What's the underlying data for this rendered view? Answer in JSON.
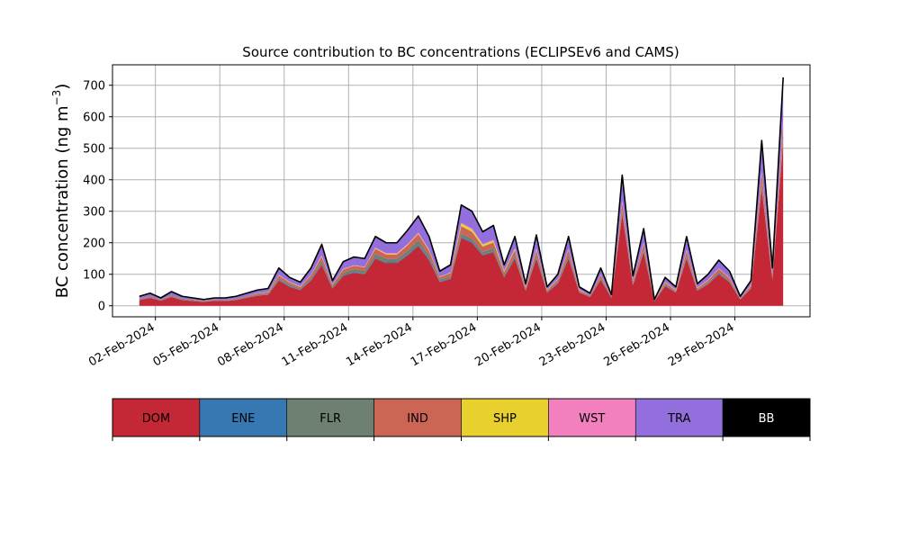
{
  "chart_data": {
    "type": "area",
    "stacked": true,
    "title": "Source contribution to BC concentrations (ECLIPSEv6 and CAMS)",
    "xlabel": "",
    "ylabel": "BC concentration (ng m",
    "ylabel_superscript": "−3",
    "ylabel_suffix": ")",
    "ylim": [
      -35,
      765
    ],
    "xlim": [
      "2024-01-31T00:00",
      "2024-03-03T12:00"
    ],
    "yticks": [
      0,
      100,
      200,
      300,
      400,
      500,
      600,
      700
    ],
    "xtick_dates": [
      "2024-02-02",
      "2024-02-05",
      "2024-02-08",
      "2024-02-11",
      "2024-02-14",
      "2024-02-17",
      "2024-02-20",
      "2024-02-23",
      "2024-02-26",
      "2024-02-29"
    ],
    "xtick_labels": [
      "02-Feb-2024",
      "05-Feb-2024",
      "08-Feb-2024",
      "11-Feb-2024",
      "14-Feb-2024",
      "17-Feb-2024",
      "20-Feb-2024",
      "23-Feb-2024",
      "26-Feb-2024",
      "29-Feb-2024"
    ],
    "grid": true,
    "legend_placement": "bottom colorbar",
    "x": [
      "2024-02-01T06:00",
      "2024-02-01T18:00",
      "2024-02-02T06:00",
      "2024-02-02T18:00",
      "2024-02-03T06:00",
      "2024-02-03T18:00",
      "2024-02-04T06:00",
      "2024-02-04T18:00",
      "2024-02-05T06:00",
      "2024-02-05T18:00",
      "2024-02-06T06:00",
      "2024-02-06T18:00",
      "2024-02-07T06:00",
      "2024-02-07T18:00",
      "2024-02-08T06:00",
      "2024-02-08T18:00",
      "2024-02-09T06:00",
      "2024-02-09T18:00",
      "2024-02-10T06:00",
      "2024-02-10T18:00",
      "2024-02-11T06:00",
      "2024-02-11T18:00",
      "2024-02-12T06:00",
      "2024-02-12T18:00",
      "2024-02-13T06:00",
      "2024-02-13T18:00",
      "2024-02-14T06:00",
      "2024-02-14T18:00",
      "2024-02-15T06:00",
      "2024-02-15T18:00",
      "2024-02-16T06:00",
      "2024-02-16T18:00",
      "2024-02-17T06:00",
      "2024-02-17T18:00",
      "2024-02-18T06:00",
      "2024-02-18T18:00",
      "2024-02-19T06:00",
      "2024-02-19T18:00",
      "2024-02-20T06:00",
      "2024-02-20T18:00",
      "2024-02-21T06:00",
      "2024-02-21T18:00",
      "2024-02-22T06:00",
      "2024-02-22T18:00",
      "2024-02-23T06:00",
      "2024-02-23T18:00",
      "2024-02-24T06:00",
      "2024-02-24T18:00",
      "2024-02-25T06:00",
      "2024-02-25T18:00",
      "2024-02-26T06:00",
      "2024-02-26T18:00",
      "2024-02-27T06:00",
      "2024-02-27T18:00",
      "2024-02-28T06:00",
      "2024-02-28T18:00",
      "2024-02-29T06:00",
      "2024-02-29T18:00",
      "2024-03-01T06:00",
      "2024-03-01T18:00",
      "2024-03-02T06:00"
    ],
    "total": [
      30,
      40,
      25,
      45,
      30,
      25,
      20,
      25,
      25,
      30,
      40,
      50,
      55,
      120,
      90,
      75,
      120,
      195,
      80,
      140,
      155,
      150,
      220,
      200,
      200,
      240,
      285,
      220,
      110,
      130,
      320,
      300,
      235,
      255,
      130,
      220,
      70,
      225,
      60,
      100,
      220,
      60,
      40,
      120,
      35,
      415,
      95,
      245,
      20,
      90,
      60,
      220,
      70,
      100,
      145,
      110,
      30,
      80,
      525,
      120,
      725
    ],
    "series": [
      {
        "name": "DOM",
        "color": "#c42836",
        "values": [
          18,
          25,
          16,
          28,
          18,
          15,
          12,
          16,
          15,
          18,
          25,
          32,
          35,
          80,
          60,
          50,
          80,
          130,
          55,
          95,
          105,
          100,
          150,
          135,
          135,
          160,
          190,
          145,
          75,
          85,
          215,
          200,
          160,
          170,
          90,
          150,
          48,
          150,
          42,
          70,
          150,
          42,
          28,
          82,
          25,
          290,
          65,
          170,
          14,
          62,
          42,
          150,
          48,
          68,
          100,
          75,
          20,
          55,
          370,
          82,
          520
        ]
      },
      {
        "name": "ENE",
        "color": "#3778b3",
        "values": [
          1,
          1,
          1,
          1,
          1,
          1,
          1,
          1,
          1,
          1,
          1,
          1,
          1,
          2,
          2,
          1,
          2,
          3,
          1,
          2,
          2,
          2,
          3,
          3,
          3,
          3,
          4,
          3,
          2,
          2,
          4,
          4,
          3,
          3,
          2,
          3,
          1,
          3,
          1,
          2,
          3,
          1,
          1,
          2,
          1,
          4,
          2,
          3,
          1,
          2,
          1,
          3,
          1,
          2,
          2,
          2,
          1,
          1,
          5,
          2,
          6
        ]
      },
      {
        "name": "FLR",
        "color": "#6d8071",
        "values": [
          2,
          2,
          2,
          2,
          2,
          2,
          1,
          1,
          1,
          2,
          2,
          2,
          3,
          5,
          5,
          4,
          6,
          9,
          5,
          8,
          9,
          9,
          12,
          11,
          11,
          12,
          14,
          12,
          6,
          7,
          10,
          9,
          8,
          9,
          5,
          8,
          3,
          8,
          3,
          4,
          8,
          2,
          2,
          4,
          1,
          8,
          3,
          5,
          1,
          3,
          2,
          5,
          2,
          3,
          4,
          3,
          1,
          2,
          10,
          3,
          12
        ]
      },
      {
        "name": "IND",
        "color": "#cb6655",
        "values": [
          2,
          3,
          2,
          3,
          2,
          2,
          2,
          2,
          2,
          2,
          3,
          4,
          4,
          9,
          7,
          5,
          9,
          14,
          6,
          10,
          11,
          11,
          16,
          14,
          14,
          17,
          20,
          15,
          8,
          10,
          24,
          22,
          17,
          19,
          10,
          16,
          5,
          16,
          4,
          7,
          16,
          4,
          3,
          9,
          3,
          25,
          7,
          18,
          2,
          7,
          4,
          16,
          5,
          7,
          11,
          8,
          2,
          6,
          35,
          9,
          45
        ]
      },
      {
        "name": "SHP",
        "color": "#e8d02f",
        "values": [
          0,
          0,
          0,
          0,
          0,
          0,
          0,
          0,
          0,
          0,
          0,
          1,
          1,
          1,
          1,
          1,
          1,
          2,
          1,
          1,
          1,
          1,
          2,
          2,
          2,
          2,
          2,
          2,
          1,
          1,
          8,
          8,
          6,
          6,
          3,
          4,
          1,
          3,
          1,
          1,
          2,
          1,
          0,
          1,
          0,
          3,
          1,
          2,
          0,
          1,
          1,
          2,
          1,
          1,
          1,
          1,
          0,
          1,
          4,
          1,
          5
        ]
      },
      {
        "name": "WST",
        "color": "#f280bf",
        "values": [
          0,
          0,
          0,
          0,
          0,
          0,
          0,
          0,
          0,
          0,
          0,
          0,
          0,
          1,
          1,
          1,
          1,
          2,
          1,
          1,
          1,
          1,
          2,
          2,
          2,
          2,
          2,
          2,
          1,
          1,
          2,
          2,
          2,
          2,
          1,
          2,
          1,
          2,
          1,
          1,
          2,
          1,
          0,
          1,
          0,
          3,
          1,
          2,
          0,
          1,
          1,
          2,
          1,
          1,
          1,
          1,
          0,
          1,
          3,
          1,
          4
        ]
      },
      {
        "name": "TRA",
        "color": "#926fdc",
        "values": [
          6,
          8,
          4,
          10,
          6,
          4,
          3,
          4,
          5,
          6,
          8,
          9,
          10,
          21,
          13,
          12,
          20,
          33,
          10,
          22,
          25,
          25,
          34,
          32,
          32,
          43,
          52,
          40,
          16,
          23,
          55,
          53,
          37,
          44,
          18,
          35,
          10,
          41,
          7,
          14,
          37,
          8,
          5,
          20,
          4,
          77,
          15,
          43,
          1,
          13,
          8,
          40,
          11,
          17,
          25,
          19,
          5,
          13,
          95,
          21,
          130
        ]
      },
      {
        "name": "BB",
        "color": "#000000",
        "values": [
          1,
          1,
          0,
          1,
          1,
          1,
          1,
          1,
          1,
          1,
          1,
          1,
          1,
          1,
          1,
          1,
          1,
          2,
          1,
          1,
          1,
          1,
          1,
          1,
          1,
          1,
          1,
          1,
          1,
          1,
          2,
          2,
          2,
          2,
          1,
          2,
          1,
          2,
          1,
          1,
          2,
          1,
          1,
          1,
          1,
          5,
          1,
          2,
          1,
          1,
          1,
          2,
          1,
          1,
          1,
          1,
          1,
          1,
          3,
          1,
          3
        ]
      }
    ]
  }
}
